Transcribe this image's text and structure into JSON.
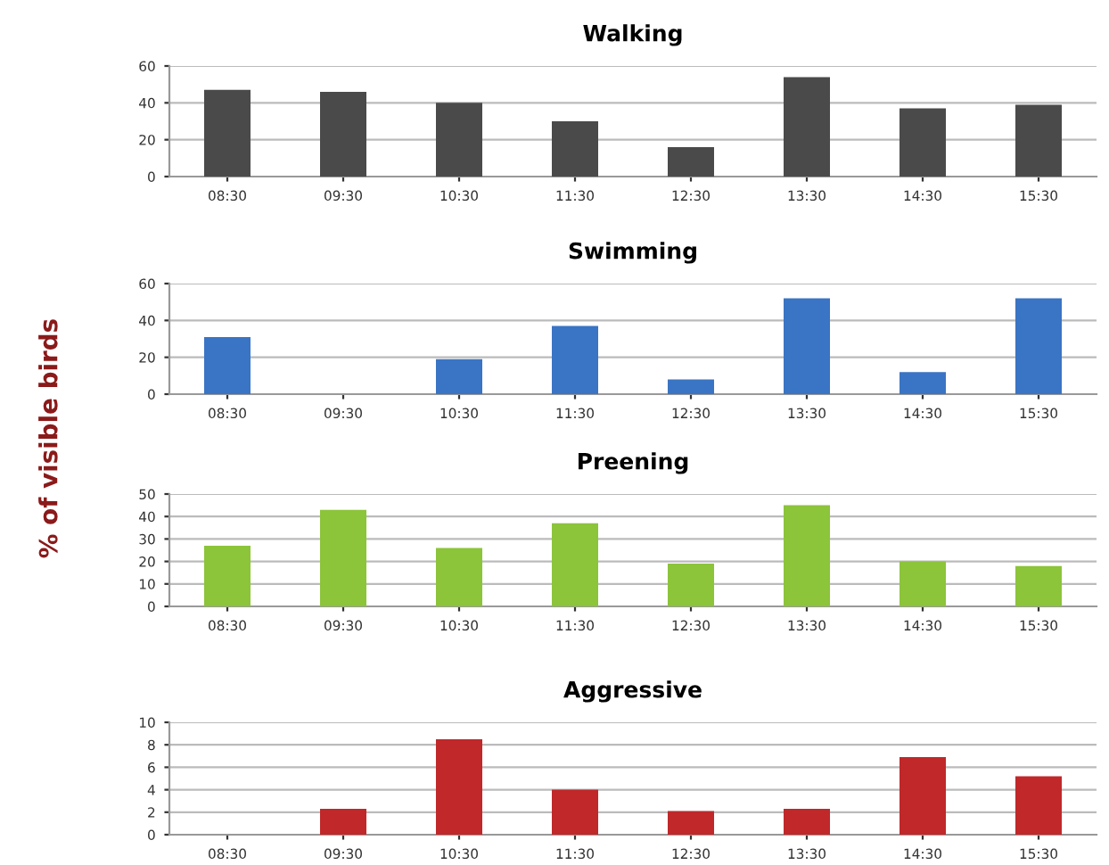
{
  "chart_data": [
    {
      "type": "bar",
      "title": "Walking",
      "categories": [
        "08:30",
        "09:30",
        "10:30",
        "11:30",
        "12:30",
        "13:30",
        "14:30",
        "15:30"
      ],
      "values": [
        47,
        46,
        40,
        30,
        16,
        54,
        37,
        39
      ],
      "color": "#4a4a4a",
      "ylim": [
        0,
        60
      ],
      "yticks": [
        0,
        20,
        40,
        60
      ],
      "grid": "y"
    },
    {
      "type": "bar",
      "title": "Swimming",
      "ylabel": "% of visible birds",
      "categories": [
        "08:30",
        "09:30",
        "10:30",
        "11:30",
        "12:30",
        "13:30",
        "14:30",
        "15:30"
      ],
      "values": [
        31,
        0,
        19,
        37,
        8,
        52,
        12,
        52
      ],
      "color": "#3a74c4",
      "ylim": [
        0,
        60
      ],
      "yticks": [
        0,
        20,
        40,
        60
      ],
      "grid": "y"
    },
    {
      "type": "bar",
      "title": "Preening",
      "categories": [
        "08:30",
        "09:30",
        "10:30",
        "11:30",
        "12:30",
        "13:30",
        "14:30",
        "15:30"
      ],
      "values": [
        27,
        43,
        26,
        37,
        19,
        45,
        20,
        18
      ],
      "color": "#8cc43a",
      "ylim": [
        0,
        50
      ],
      "yticks": [
        0,
        10,
        20,
        30,
        40,
        50
      ],
      "grid": "y"
    },
    {
      "type": "bar",
      "title": "Aggressive",
      "categories": [
        "08:30",
        "09:30",
        "10:30",
        "11:30",
        "12:30",
        "13:30",
        "14:30",
        "15:30"
      ],
      "values": [
        0,
        2.3,
        8.5,
        4,
        2.1,
        2.3,
        6.9,
        5.2
      ],
      "color": "#c0282a",
      "ylim": [
        0,
        10
      ],
      "yticks": [
        0,
        2,
        4,
        6,
        8,
        10
      ],
      "grid": "y"
    }
  ]
}
